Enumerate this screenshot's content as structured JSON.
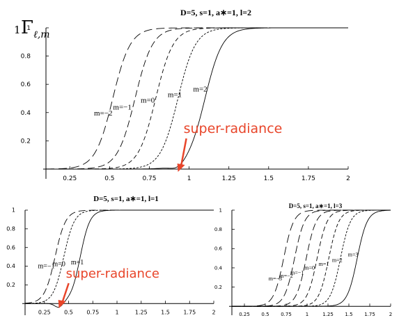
{
  "ylabel": {
    "prefix": "1",
    "symbol": "Γ",
    "sub": "ℓ,m"
  },
  "chart_data": [
    {
      "type": "line",
      "title": "D=5, s=1, a∗=1, l=2",
      "xlim": [
        0.1,
        2.0
      ],
      "ylim": [
        -0.02,
        1.0
      ],
      "xticks": [
        "0.25",
        "0.5",
        "0.75",
        "1",
        "1.25",
        "1.5",
        "1.75",
        "2"
      ],
      "yticks": [
        "0.2",
        "0.4",
        "0.6",
        "0.8",
        "1"
      ],
      "series": [
        {
          "name": "m=−2",
          "dash": "12,6",
          "center": 0.52,
          "width": 0.055,
          "dip": 0.0,
          "label_pos": [
            0.46,
            0.38
          ]
        },
        {
          "name": "m=−1",
          "dash": "10,5",
          "center": 0.66,
          "width": 0.055,
          "dip": 0.0,
          "label_pos": [
            0.58,
            0.42
          ]
        },
        {
          "name": "m=0",
          "dash": "6,4",
          "center": 0.79,
          "width": 0.055,
          "dip": 0.0,
          "label_pos": [
            0.74,
            0.47
          ]
        },
        {
          "name": "m=1",
          "dash": "3,2",
          "center": 0.93,
          "width": 0.055,
          "dip": 0.0,
          "label_pos": [
            0.91,
            0.51
          ]
        },
        {
          "name": "m=2",
          "dash": "",
          "center": 1.1,
          "width": 0.055,
          "dip": 0.025,
          "dip_x": 0.93,
          "label_pos": [
            1.07,
            0.55
          ]
        }
      ],
      "annotation": {
        "text": "super-radiance",
        "point": [
          0.93,
          -0.02
        ]
      }
    },
    {
      "type": "line",
      "title": "D=5, s=1, a∗=1, l=1",
      "xlim": [
        0.05,
        2.0
      ],
      "ylim": [
        -0.05,
        1.0
      ],
      "xticks": [
        "0.25",
        "0.5",
        "0.75",
        "1",
        "1.25",
        "1.5",
        "1.75",
        "2"
      ],
      "yticks": [
        "0.2",
        "0.4",
        "0.6",
        "0.8",
        "1"
      ],
      "series": [
        {
          "name": "m=−1",
          "dash": "10,5",
          "center": 0.36,
          "width": 0.055,
          "dip": 0.0,
          "label_pos": [
            0.27,
            0.38
          ]
        },
        {
          "name": "m=0",
          "dash": "3,2",
          "center": 0.45,
          "width": 0.055,
          "dip": 0.0,
          "label_pos": [
            0.4,
            0.4
          ]
        },
        {
          "name": "m=1",
          "dash": "",
          "center": 0.62,
          "width": 0.05,
          "dip": 0.05,
          "dip_x": 0.4,
          "label_pos": [
            0.59,
            0.42
          ]
        }
      ],
      "annotation": {
        "text": "super-radiance",
        "point": [
          0.4,
          -0.05
        ]
      }
    },
    {
      "type": "line",
      "title": "D=5, s=1, a∗=1, l=3",
      "xlim": [
        0.1,
        2.0
      ],
      "ylim": [
        -0.02,
        1.0
      ],
      "xticks": [
        "0.25",
        "0.5",
        "0.75",
        "1",
        "1.25",
        "1.5",
        "1.75",
        "2"
      ],
      "yticks": [
        "0.2",
        "0.4",
        "0.6",
        "0.8",
        "1"
      ],
      "series": [
        {
          "name": "m=−3",
          "dash": "12,6",
          "center": 0.72,
          "width": 0.06,
          "dip": 0.0,
          "label_pos": [
            0.62,
            0.27
          ]
        },
        {
          "name": "m=−2",
          "dash": "11,5",
          "center": 0.85,
          "width": 0.06,
          "dip": 0.0,
          "label_pos": [
            0.75,
            0.3
          ]
        },
        {
          "name": "m=−1",
          "dash": "10,5",
          "center": 0.99,
          "width": 0.06,
          "dip": 0.0,
          "label_pos": [
            0.88,
            0.33
          ]
        },
        {
          "name": "m=0",
          "dash": "7,4",
          "center": 1.12,
          "width": 0.06,
          "dip": 0.0,
          "label_pos": [
            1.03,
            0.38
          ]
        },
        {
          "name": "m=1",
          "dash": "5,3",
          "center": 1.26,
          "width": 0.06,
          "dip": 0.0,
          "label_pos": [
            1.2,
            0.42
          ]
        },
        {
          "name": "m=2",
          "dash": "3,2",
          "center": 1.4,
          "width": 0.06,
          "dip": 0.0,
          "label_pos": [
            1.36,
            0.46
          ]
        },
        {
          "name": "m=3",
          "dash": "",
          "center": 1.6,
          "width": 0.06,
          "dip": 0.0,
          "label_pos": [
            1.55,
            0.52
          ]
        }
      ]
    }
  ]
}
